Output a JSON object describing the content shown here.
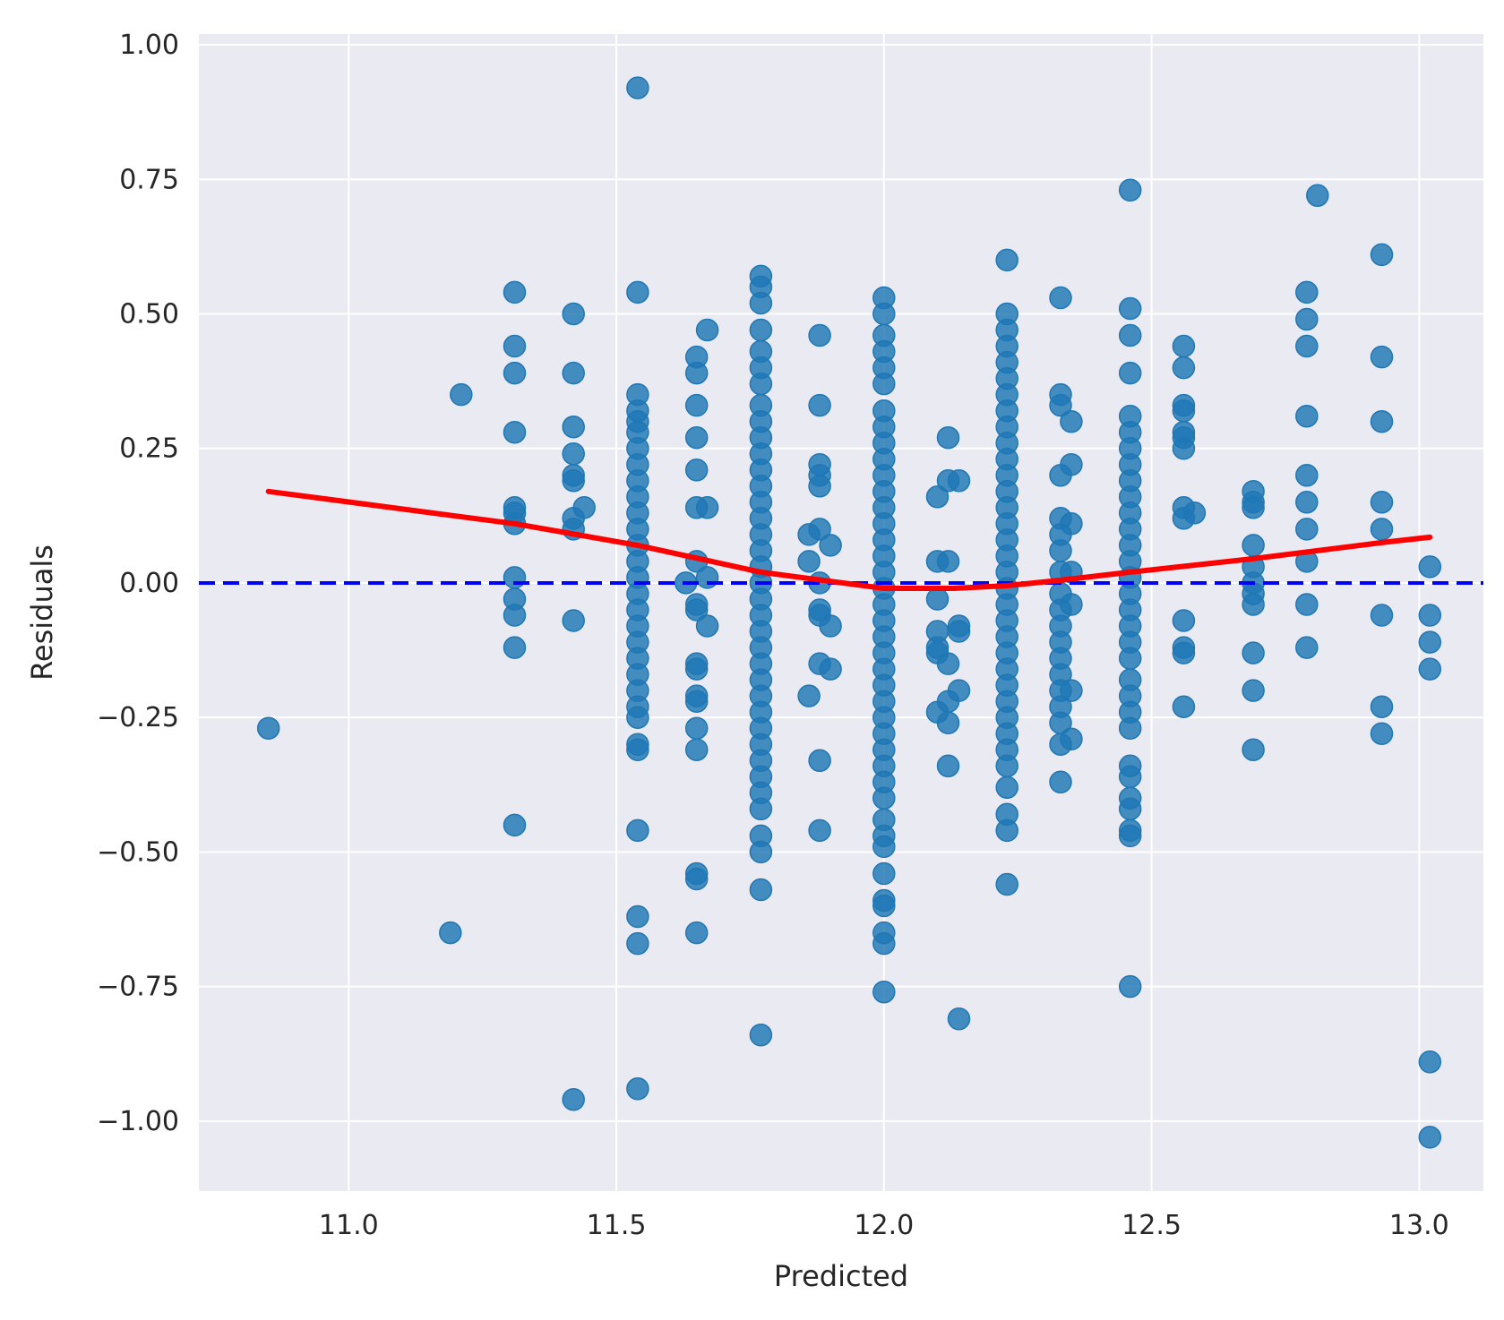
{
  "chart_data": {
    "type": "scatter",
    "title": "",
    "xlabel": "Predicted",
    "ylabel": "Residuals",
    "xlim": [
      10.72,
      13.12
    ],
    "ylim": [
      -1.13,
      1.02
    ],
    "xticks": [
      11.0,
      11.5,
      12.0,
      12.5,
      13.0
    ],
    "xtick_labels": [
      "11.0",
      "11.5",
      "12.0",
      "12.5",
      "13.0"
    ],
    "yticks": [
      1.0,
      0.75,
      0.5,
      0.25,
      0.0,
      -0.25,
      -0.5,
      -0.75,
      -1.0
    ],
    "ytick_labels": [
      "1.00",
      "0.75",
      "0.50",
      "0.25",
      "0.00",
      "−0.25",
      "−0.50",
      "−0.75",
      "−1.00"
    ],
    "grid": true,
    "legend": "none",
    "colors": {
      "background": "#eaeaf2",
      "grid": "#ffffff",
      "points": "#1f77b4",
      "lowess": "#ff0000",
      "zero_line": "#0000ff"
    },
    "reference_line": {
      "y": 0.0,
      "style": "dashed"
    },
    "lowess": {
      "x": [
        10.85,
        11.31,
        11.54,
        11.77,
        12.0,
        12.13,
        12.23,
        12.33,
        12.46,
        12.69,
        12.93,
        13.02
      ],
      "y": [
        0.17,
        0.11,
        0.07,
        0.02,
        -0.01,
        -0.01,
        -0.005,
        0.005,
        0.02,
        0.045,
        0.075,
        0.085
      ]
    },
    "points": [
      [
        10.85,
        -0.27
      ],
      [
        11.19,
        -0.65
      ],
      [
        11.21,
        0.35
      ],
      [
        11.31,
        0.54
      ],
      [
        11.31,
        0.44
      ],
      [
        11.31,
        0.39
      ],
      [
        11.31,
        0.28
      ],
      [
        11.31,
        0.14
      ],
      [
        11.31,
        0.13
      ],
      [
        11.31,
        0.11
      ],
      [
        11.31,
        0.01
      ],
      [
        11.31,
        -0.03
      ],
      [
        11.31,
        -0.06
      ],
      [
        11.31,
        -0.12
      ],
      [
        11.31,
        -0.45
      ],
      [
        11.42,
        0.5
      ],
      [
        11.42,
        0.39
      ],
      [
        11.42,
        0.29
      ],
      [
        11.42,
        0.24
      ],
      [
        11.42,
        0.2
      ],
      [
        11.42,
        0.19
      ],
      [
        11.42,
        0.12
      ],
      [
        11.42,
        0.1
      ],
      [
        11.44,
        0.14
      ],
      [
        11.42,
        -0.07
      ],
      [
        11.42,
        -0.96
      ],
      [
        11.54,
        0.92
      ],
      [
        11.54,
        0.54
      ],
      [
        11.54,
        0.35
      ],
      [
        11.54,
        0.32
      ],
      [
        11.54,
        0.3
      ],
      [
        11.54,
        0.28
      ],
      [
        11.54,
        0.25
      ],
      [
        11.54,
        0.22
      ],
      [
        11.54,
        0.19
      ],
      [
        11.54,
        0.16
      ],
      [
        11.54,
        0.13
      ],
      [
        11.54,
        0.1
      ],
      [
        11.54,
        0.07
      ],
      [
        11.54,
        0.04
      ],
      [
        11.54,
        0.01
      ],
      [
        11.54,
        -0.02
      ],
      [
        11.54,
        -0.05
      ],
      [
        11.54,
        -0.08
      ],
      [
        11.54,
        -0.11
      ],
      [
        11.54,
        -0.14
      ],
      [
        11.54,
        -0.17
      ],
      [
        11.54,
        -0.2
      ],
      [
        11.54,
        -0.23
      ],
      [
        11.54,
        -0.25
      ],
      [
        11.54,
        -0.3
      ],
      [
        11.54,
        -0.31
      ],
      [
        11.54,
        -0.46
      ],
      [
        11.54,
        -0.62
      ],
      [
        11.54,
        -0.67
      ],
      [
        11.54,
        -0.94
      ],
      [
        11.63,
        0.0
      ],
      [
        11.65,
        0.42
      ],
      [
        11.65,
        0.39
      ],
      [
        11.65,
        0.33
      ],
      [
        11.65,
        0.27
      ],
      [
        11.65,
        0.21
      ],
      [
        11.65,
        0.14
      ],
      [
        11.67,
        0.14
      ],
      [
        11.67,
        0.47
      ],
      [
        11.65,
        0.04
      ],
      [
        11.67,
        0.01
      ],
      [
        11.65,
        -0.04
      ],
      [
        11.65,
        -0.05
      ],
      [
        11.67,
        -0.08
      ],
      [
        11.65,
        -0.15
      ],
      [
        11.65,
        -0.16
      ],
      [
        11.65,
        -0.21
      ],
      [
        11.65,
        -0.22
      ],
      [
        11.65,
        -0.27
      ],
      [
        11.65,
        -0.31
      ],
      [
        11.65,
        -0.54
      ],
      [
        11.65,
        -0.55
      ],
      [
        11.65,
        -0.65
      ],
      [
        11.77,
        0.57
      ],
      [
        11.77,
        0.55
      ],
      [
        11.77,
        0.52
      ],
      [
        11.77,
        0.47
      ],
      [
        11.77,
        0.43
      ],
      [
        11.77,
        0.4
      ],
      [
        11.77,
        0.37
      ],
      [
        11.77,
        0.33
      ],
      [
        11.77,
        0.3
      ],
      [
        11.77,
        0.27
      ],
      [
        11.77,
        0.24
      ],
      [
        11.77,
        0.21
      ],
      [
        11.77,
        0.18
      ],
      [
        11.77,
        0.15
      ],
      [
        11.77,
        0.12
      ],
      [
        11.77,
        0.09
      ],
      [
        11.77,
        0.06
      ],
      [
        11.77,
        0.03
      ],
      [
        11.77,
        0.0
      ],
      [
        11.77,
        -0.03
      ],
      [
        11.77,
        -0.06
      ],
      [
        11.77,
        -0.09
      ],
      [
        11.77,
        -0.12
      ],
      [
        11.77,
        -0.15
      ],
      [
        11.77,
        -0.18
      ],
      [
        11.77,
        -0.21
      ],
      [
        11.77,
        -0.24
      ],
      [
        11.77,
        -0.27
      ],
      [
        11.77,
        -0.3
      ],
      [
        11.77,
        -0.33
      ],
      [
        11.77,
        -0.36
      ],
      [
        11.77,
        -0.39
      ],
      [
        11.77,
        -0.42
      ],
      [
        11.77,
        -0.47
      ],
      [
        11.77,
        -0.5
      ],
      [
        11.77,
        -0.57
      ],
      [
        11.77,
        -0.84
      ],
      [
        11.86,
        0.09
      ],
      [
        11.86,
        0.04
      ],
      [
        11.86,
        -0.21
      ],
      [
        11.88,
        0.46
      ],
      [
        11.88,
        0.33
      ],
      [
        11.88,
        0.22
      ],
      [
        11.88,
        0.2
      ],
      [
        11.88,
        0.18
      ],
      [
        11.88,
        0.1
      ],
      [
        11.9,
        0.07
      ],
      [
        11.88,
        0.0
      ],
      [
        11.88,
        -0.05
      ],
      [
        11.88,
        -0.06
      ],
      [
        11.9,
        -0.08
      ],
      [
        11.88,
        -0.15
      ],
      [
        11.9,
        -0.16
      ],
      [
        11.88,
        -0.33
      ],
      [
        11.88,
        -0.46
      ],
      [
        12.0,
        0.53
      ],
      [
        12.0,
        0.5
      ],
      [
        12.0,
        0.46
      ],
      [
        12.0,
        0.43
      ],
      [
        12.0,
        0.4
      ],
      [
        12.0,
        0.37
      ],
      [
        12.0,
        0.32
      ],
      [
        12.0,
        0.29
      ],
      [
        12.0,
        0.26
      ],
      [
        12.0,
        0.23
      ],
      [
        12.0,
        0.2
      ],
      [
        12.0,
        0.17
      ],
      [
        12.0,
        0.14
      ],
      [
        12.0,
        0.11
      ],
      [
        12.0,
        0.08
      ],
      [
        12.0,
        0.05
      ],
      [
        12.0,
        0.02
      ],
      [
        12.0,
        -0.01
      ],
      [
        12.0,
        -0.04
      ],
      [
        12.0,
        -0.07
      ],
      [
        12.0,
        -0.1
      ],
      [
        12.0,
        -0.13
      ],
      [
        12.0,
        -0.16
      ],
      [
        12.0,
        -0.19
      ],
      [
        12.0,
        -0.22
      ],
      [
        12.0,
        -0.25
      ],
      [
        12.0,
        -0.28
      ],
      [
        12.0,
        -0.31
      ],
      [
        12.0,
        -0.34
      ],
      [
        12.0,
        -0.37
      ],
      [
        12.0,
        -0.4
      ],
      [
        12.0,
        -0.44
      ],
      [
        12.0,
        -0.47
      ],
      [
        12.0,
        -0.49
      ],
      [
        12.0,
        -0.54
      ],
      [
        12.0,
        -0.59
      ],
      [
        12.0,
        -0.6
      ],
      [
        12.0,
        -0.65
      ],
      [
        12.0,
        -0.67
      ],
      [
        12.0,
        -0.76
      ],
      [
        12.1,
        0.16
      ],
      [
        12.1,
        0.04
      ],
      [
        12.1,
        -0.03
      ],
      [
        12.1,
        -0.09
      ],
      [
        12.1,
        -0.12
      ],
      [
        12.1,
        -0.13
      ],
      [
        12.1,
        -0.24
      ],
      [
        12.12,
        0.27
      ],
      [
        12.12,
        0.19
      ],
      [
        12.12,
        0.04
      ],
      [
        12.12,
        -0.15
      ],
      [
        12.12,
        -0.22
      ],
      [
        12.12,
        -0.26
      ],
      [
        12.12,
        -0.34
      ],
      [
        12.14,
        0.19
      ],
      [
        12.14,
        -0.08
      ],
      [
        12.14,
        -0.09
      ],
      [
        12.14,
        -0.2
      ],
      [
        12.14,
        -0.81
      ],
      [
        12.23,
        0.6
      ],
      [
        12.23,
        0.5
      ],
      [
        12.23,
        0.47
      ],
      [
        12.23,
        0.44
      ],
      [
        12.23,
        0.41
      ],
      [
        12.23,
        0.38
      ],
      [
        12.23,
        0.35
      ],
      [
        12.23,
        0.32
      ],
      [
        12.23,
        0.29
      ],
      [
        12.23,
        0.26
      ],
      [
        12.23,
        0.23
      ],
      [
        12.23,
        0.2
      ],
      [
        12.23,
        0.17
      ],
      [
        12.23,
        0.14
      ],
      [
        12.23,
        0.11
      ],
      [
        12.23,
        0.08
      ],
      [
        12.23,
        0.05
      ],
      [
        12.23,
        0.02
      ],
      [
        12.23,
        -0.01
      ],
      [
        12.23,
        -0.04
      ],
      [
        12.23,
        -0.07
      ],
      [
        12.23,
        -0.1
      ],
      [
        12.23,
        -0.13
      ],
      [
        12.23,
        -0.16
      ],
      [
        12.23,
        -0.19
      ],
      [
        12.23,
        -0.22
      ],
      [
        12.23,
        -0.25
      ],
      [
        12.23,
        -0.28
      ],
      [
        12.23,
        -0.31
      ],
      [
        12.23,
        -0.34
      ],
      [
        12.23,
        -0.38
      ],
      [
        12.23,
        -0.43
      ],
      [
        12.23,
        -0.46
      ],
      [
        12.23,
        -0.56
      ],
      [
        12.33,
        0.53
      ],
      [
        12.33,
        0.35
      ],
      [
        12.33,
        0.33
      ],
      [
        12.33,
        0.2
      ],
      [
        12.33,
        0.12
      ],
      [
        12.33,
        0.09
      ],
      [
        12.33,
        0.06
      ],
      [
        12.33,
        0.02
      ],
      [
        12.33,
        -0.02
      ],
      [
        12.33,
        -0.05
      ],
      [
        12.33,
        -0.08
      ],
      [
        12.33,
        -0.11
      ],
      [
        12.33,
        -0.14
      ],
      [
        12.33,
        -0.17
      ],
      [
        12.33,
        -0.2
      ],
      [
        12.33,
        -0.23
      ],
      [
        12.33,
        -0.26
      ],
      [
        12.33,
        -0.3
      ],
      [
        12.33,
        -0.37
      ],
      [
        12.35,
        0.3
      ],
      [
        12.35,
        0.22
      ],
      [
        12.35,
        0.11
      ],
      [
        12.35,
        0.02
      ],
      [
        12.35,
        -0.04
      ],
      [
        12.35,
        -0.2
      ],
      [
        12.35,
        -0.29
      ],
      [
        12.46,
        0.73
      ],
      [
        12.46,
        0.51
      ],
      [
        12.46,
        0.46
      ],
      [
        12.46,
        0.39
      ],
      [
        12.46,
        0.31
      ],
      [
        12.46,
        0.28
      ],
      [
        12.46,
        0.25
      ],
      [
        12.46,
        0.22
      ],
      [
        12.46,
        0.19
      ],
      [
        12.46,
        0.16
      ],
      [
        12.46,
        0.13
      ],
      [
        12.46,
        0.1
      ],
      [
        12.46,
        0.07
      ],
      [
        12.46,
        0.04
      ],
      [
        12.46,
        0.01
      ],
      [
        12.46,
        -0.02
      ],
      [
        12.46,
        -0.05
      ],
      [
        12.46,
        -0.08
      ],
      [
        12.46,
        -0.11
      ],
      [
        12.46,
        -0.14
      ],
      [
        12.46,
        -0.18
      ],
      [
        12.46,
        -0.21
      ],
      [
        12.46,
        -0.24
      ],
      [
        12.46,
        -0.27
      ],
      [
        12.46,
        -0.34
      ],
      [
        12.46,
        -0.36
      ],
      [
        12.46,
        -0.4
      ],
      [
        12.46,
        -0.42
      ],
      [
        12.46,
        -0.46
      ],
      [
        12.46,
        -0.47
      ],
      [
        12.46,
        -0.75
      ],
      [
        12.56,
        0.44
      ],
      [
        12.56,
        0.4
      ],
      [
        12.56,
        0.33
      ],
      [
        12.56,
        0.32
      ],
      [
        12.56,
        0.28
      ],
      [
        12.56,
        0.27
      ],
      [
        12.56,
        0.25
      ],
      [
        12.56,
        0.14
      ],
      [
        12.58,
        0.13
      ],
      [
        12.56,
        0.12
      ],
      [
        12.56,
        -0.07
      ],
      [
        12.56,
        -0.12
      ],
      [
        12.56,
        -0.13
      ],
      [
        12.56,
        -0.23
      ],
      [
        12.69,
        0.17
      ],
      [
        12.69,
        0.15
      ],
      [
        12.69,
        0.14
      ],
      [
        12.69,
        0.07
      ],
      [
        12.69,
        0.03
      ],
      [
        12.69,
        0.0
      ],
      [
        12.69,
        -0.02
      ],
      [
        12.69,
        -0.04
      ],
      [
        12.69,
        -0.13
      ],
      [
        12.69,
        -0.2
      ],
      [
        12.69,
        -0.31
      ],
      [
        12.79,
        0.54
      ],
      [
        12.79,
        0.49
      ],
      [
        12.79,
        0.44
      ],
      [
        12.79,
        0.31
      ],
      [
        12.79,
        0.2
      ],
      [
        12.79,
        0.15
      ],
      [
        12.79,
        0.1
      ],
      [
        12.79,
        0.04
      ],
      [
        12.79,
        -0.04
      ],
      [
        12.79,
        -0.12
      ],
      [
        12.81,
        0.72
      ],
      [
        12.93,
        0.61
      ],
      [
        12.93,
        0.42
      ],
      [
        12.93,
        0.3
      ],
      [
        12.93,
        0.15
      ],
      [
        12.93,
        0.1
      ],
      [
        12.93,
        -0.06
      ],
      [
        12.93,
        -0.23
      ],
      [
        12.93,
        -0.28
      ],
      [
        13.02,
        0.03
      ],
      [
        13.02,
        -0.06
      ],
      [
        13.02,
        -0.11
      ],
      [
        13.02,
        -0.16
      ],
      [
        13.02,
        -0.89
      ],
      [
        13.02,
        -1.03
      ]
    ]
  }
}
